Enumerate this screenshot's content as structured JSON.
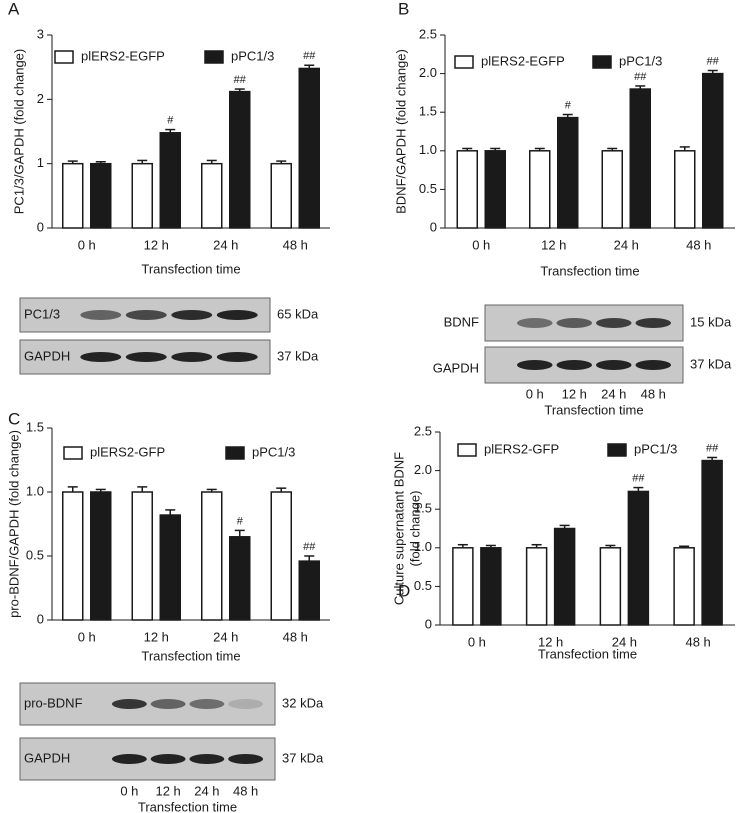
{
  "chart_data": [
    {
      "type": "bar",
      "panel": "A",
      "ylabel": "PC1/3/GAPDH (fold change)",
      "xlabel": "Transfection time",
      "categories": [
        "0 h",
        "12 h",
        "24 h",
        "48 h"
      ],
      "series": [
        {
          "name": "plERS2-EGFP",
          "color": "#ffffff",
          "values": [
            1.0,
            1.0,
            1.0,
            1.0
          ],
          "errors": [
            0.04,
            0.05,
            0.05,
            0.04
          ],
          "annotations": [
            null,
            null,
            null,
            null
          ]
        },
        {
          "name": "pPC1/3",
          "color": "#1a1a1a",
          "values": [
            1.0,
            1.48,
            2.12,
            2.48
          ],
          "errors": [
            0.03,
            0.05,
            0.04,
            0.05
          ],
          "annotations": [
            null,
            "#",
            "##",
            "##"
          ]
        }
      ],
      "ylim": [
        0,
        3
      ],
      "yticks": [
        0,
        1,
        2,
        3
      ]
    },
    {
      "type": "bar",
      "panel": "B",
      "ylabel": "BDNF/GAPDH (fold change)",
      "xlabel": "Transfection time",
      "categories": [
        "0 h",
        "12 h",
        "24 h",
        "48 h"
      ],
      "series": [
        {
          "name": "plERS2-EGFP",
          "color": "#ffffff",
          "values": [
            1.0,
            1.0,
            1.0,
            1.0
          ],
          "errors": [
            0.03,
            0.03,
            0.03,
            0.05
          ],
          "annotations": [
            null,
            null,
            null,
            null
          ]
        },
        {
          "name": "pPC1/3",
          "color": "#1a1a1a",
          "values": [
            1.0,
            1.43,
            1.8,
            2.0
          ],
          "errors": [
            0.03,
            0.04,
            0.04,
            0.04
          ],
          "annotations": [
            null,
            "#",
            "##",
            "##"
          ]
        }
      ],
      "ylim": [
        0,
        2.5
      ],
      "yticks": [
        0,
        0.5,
        {
          "value": 1,
          "label": "1.0"
        },
        1.5,
        {
          "value": 2,
          "label": "2.0"
        },
        2.5
      ]
    },
    {
      "type": "bar",
      "panel": "C",
      "ylabel": "pro-BDNF/GAPDH (fold change)",
      "xlabel": "Transfection time",
      "categories": [
        "0 h",
        "12 h",
        "24 h",
        "48 h"
      ],
      "series": [
        {
          "name": "plERS2-GFP",
          "color": "#ffffff",
          "values": [
            1.0,
            1.0,
            1.0,
            1.0
          ],
          "errors": [
            0.04,
            0.04,
            0.02,
            0.03
          ],
          "annotations": [
            null,
            null,
            null,
            null
          ]
        },
        {
          "name": "pPC1/3",
          "color": "#1a1a1a",
          "values": [
            1.0,
            0.82,
            0.65,
            0.46
          ],
          "errors": [
            0.02,
            0.04,
            0.05,
            0.04
          ],
          "annotations": [
            null,
            null,
            "#",
            "##"
          ]
        }
      ],
      "ylim": [
        0,
        1.5
      ],
      "yticks": [
        0,
        0.5,
        {
          "value": 1,
          "label": "1.0"
        },
        1.5
      ]
    },
    {
      "type": "bar",
      "panel": "D",
      "ylabel": [
        "Culture supernatant BDNF",
        "(fold change)"
      ],
      "xlabel": "Transfection time",
      "categories": [
        "0 h",
        "12 h",
        "24 h",
        "48 h"
      ],
      "series": [
        {
          "name": "plERS2-GFP",
          "color": "#ffffff",
          "values": [
            1.0,
            1.0,
            1.0,
            1.0
          ],
          "errors": [
            0.04,
            0.04,
            0.03,
            0.02
          ],
          "annotations": [
            null,
            null,
            null,
            null
          ]
        },
        {
          "name": "pPC1/3",
          "color": "#1a1a1a",
          "values": [
            1.0,
            1.25,
            1.73,
            2.13
          ],
          "errors": [
            0.03,
            0.04,
            0.05,
            0.04
          ],
          "annotations": [
            null,
            null,
            "##",
            "##"
          ]
        }
      ],
      "ylim": [
        0,
        2.5
      ],
      "yticks": [
        0,
        0.5,
        {
          "value": 1,
          "label": "1.0"
        },
        1.5,
        {
          "value": 2,
          "label": "2.0"
        },
        2.5
      ]
    }
  ],
  "blots": [
    {
      "rows": [
        {
          "label": "PC1/3",
          "size": "65 kDa"
        },
        {
          "label": "GAPDH",
          "size": "37 kDa"
        }
      ]
    },
    {
      "rows": [
        {
          "label": "BDNF",
          "size": "15 kDa"
        },
        {
          "label": "GAPDH",
          "size": "37 kDa"
        }
      ],
      "lanes": [
        "0 h",
        "12 h",
        "24 h",
        "48 h"
      ],
      "xlabel": "Transfection time"
    },
    {
      "rows": [
        {
          "label": "pro-BDNF",
          "size": "32 kDa"
        },
        {
          "label": "GAPDH",
          "size": "37 kDa"
        }
      ],
      "lanes": [
        "0 h",
        "12 h",
        "24 h",
        "48 h"
      ],
      "xlabel": "Transfection time"
    }
  ]
}
